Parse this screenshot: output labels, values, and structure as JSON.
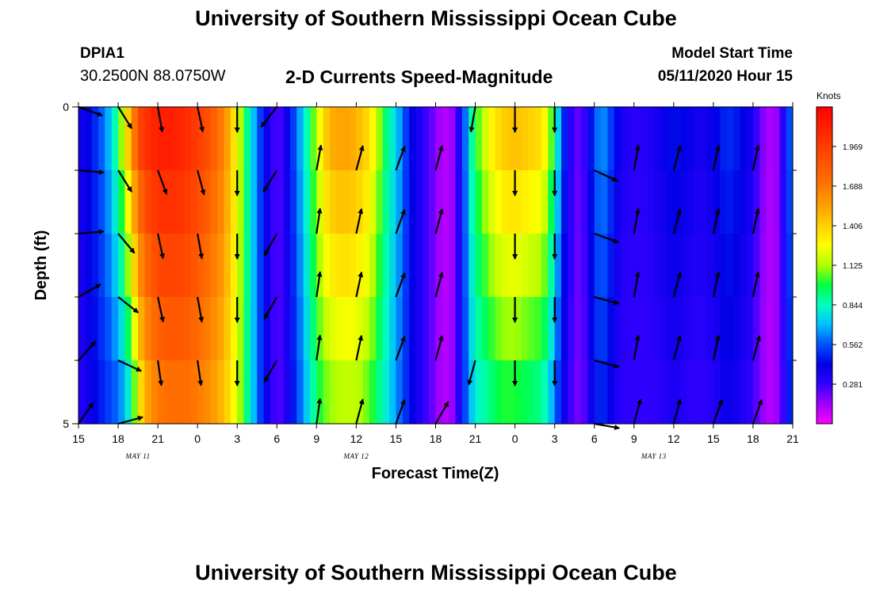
{
  "header": {
    "title": "University of Southern Mississippi Ocean Cube",
    "station_id": "DPIA1",
    "station_coords": "30.2500N 88.0750W",
    "plot_title": "2-D Currents Speed-Magnitude",
    "model_start_label": "Model Start Time",
    "model_start_value": "05/11/2020 Hour 15"
  },
  "footer": {
    "title": "University of Southern Mississippi Ocean Cube"
  },
  "chart_data": {
    "type": "heatmap",
    "title": "2-D Currents Speed-Magnitude",
    "xlabel": "Forecast Time(Z)",
    "ylabel": "Depth (ft)",
    "x_range_hours": [
      0,
      54
    ],
    "x_ticks": [
      {
        "hour": 0,
        "label": "15"
      },
      {
        "hour": 3,
        "label": "18"
      },
      {
        "hour": 6,
        "label": "21"
      },
      {
        "hour": 9,
        "label": "0"
      },
      {
        "hour": 12,
        "label": "3"
      },
      {
        "hour": 15,
        "label": "6"
      },
      {
        "hour": 18,
        "label": "9"
      },
      {
        "hour": 21,
        "label": "12"
      },
      {
        "hour": 24,
        "label": "15"
      },
      {
        "hour": 27,
        "label": "18"
      },
      {
        "hour": 30,
        "label": "21"
      },
      {
        "hour": 33,
        "label": "0"
      },
      {
        "hour": 36,
        "label": "3"
      },
      {
        "hour": 39,
        "label": "6"
      },
      {
        "hour": 42,
        "label": "9"
      },
      {
        "hour": 45,
        "label": "12"
      },
      {
        "hour": 48,
        "label": "15"
      },
      {
        "hour": 51,
        "label": "18"
      },
      {
        "hour": 54,
        "label": "21"
      }
    ],
    "date_labels": [
      {
        "hour": 4.5,
        "label": "MAY 11"
      },
      {
        "hour": 21,
        "label": "MAY 12"
      },
      {
        "hour": 43.5,
        "label": "MAY 13"
      }
    ],
    "y_range": [
      0,
      5
    ],
    "y_ticks": [
      {
        "value": 0,
        "label": "0"
      },
      {
        "value": 5,
        "label": "5"
      }
    ],
    "depth_levels": 5,
    "colorbar": {
      "unit_label": "Knots",
      "min": 0,
      "max": 2.25,
      "tick_values": [
        0.281,
        0.562,
        0.844,
        1.125,
        1.406,
        1.688,
        1.969
      ],
      "tick_labels": [
        "0.281",
        "0.562",
        "0.844",
        "1.125",
        "1.406",
        "1.688",
        "1.969"
      ]
    },
    "speed_profile": {
      "hours": [
        0,
        1,
        2,
        2.5,
        3,
        3.5,
        4,
        4.3,
        4.6,
        5,
        6,
        7,
        8,
        9,
        10,
        11,
        12,
        12.5,
        13,
        13.5,
        14,
        14.5,
        15,
        15.5,
        16,
        17,
        17.5,
        18,
        18.5,
        19,
        20,
        21,
        22,
        22.5,
        23,
        23.5,
        24,
        24.5,
        25,
        26,
        27,
        27.5,
        28,
        28.5,
        29,
        29.5,
        30,
        30.5,
        31,
        32,
        33,
        34,
        35,
        35.5,
        36,
        36.5,
        37,
        37.5,
        38,
        38.5,
        39,
        39.5,
        40,
        40.5,
        41,
        42,
        43,
        44,
        45,
        46,
        47,
        48,
        49,
        50,
        50.5,
        51,
        51.5,
        52,
        52.5,
        53,
        53.5,
        54
      ],
      "surface": [
        0.35,
        0.45,
        0.62,
        0.75,
        0.95,
        1.25,
        1.55,
        1.75,
        1.9,
        2.0,
        2.1,
        2.1,
        2.05,
        1.95,
        1.85,
        1.65,
        1.25,
        1.0,
        0.8,
        0.6,
        0.45,
        0.32,
        0.22,
        0.3,
        0.45,
        0.75,
        0.95,
        1.15,
        1.35,
        1.5,
        1.55,
        1.5,
        1.35,
        1.2,
        1.0,
        0.85,
        0.75,
        0.6,
        0.45,
        0.3,
        0.18,
        0.1,
        0.12,
        0.18,
        0.45,
        0.75,
        1.0,
        1.1,
        1.25,
        1.4,
        1.45,
        1.4,
        1.35,
        1.2,
        0.9,
        0.6,
        0.35,
        0.25,
        0.2,
        0.35,
        0.55,
        0.65,
        0.6,
        0.45,
        0.35,
        0.3,
        0.32,
        0.38,
        0.45,
        0.4,
        0.35,
        0.4,
        0.5,
        0.45,
        0.4,
        0.35,
        0.2,
        0.15,
        0.1,
        0.2,
        0.4,
        0.7
      ],
      "bottom": [
        0.3,
        0.4,
        0.5,
        0.55,
        0.6,
        0.7,
        0.9,
        1.1,
        1.3,
        1.5,
        1.7,
        1.75,
        1.75,
        1.7,
        1.6,
        1.45,
        1.2,
        1.0,
        0.8,
        0.6,
        0.45,
        0.32,
        0.22,
        0.28,
        0.4,
        0.65,
        0.8,
        0.95,
        1.05,
        1.1,
        1.15,
        1.15,
        1.05,
        0.95,
        0.85,
        0.75,
        0.65,
        0.55,
        0.45,
        0.3,
        0.18,
        0.1,
        0.12,
        0.18,
        0.45,
        0.65,
        0.8,
        0.85,
        0.9,
        1.0,
        1.0,
        0.95,
        0.9,
        0.8,
        0.6,
        0.45,
        0.3,
        0.22,
        0.18,
        0.3,
        0.45,
        0.5,
        0.45,
        0.35,
        0.3,
        0.28,
        0.28,
        0.3,
        0.35,
        0.3,
        0.28,
        0.32,
        0.4,
        0.35,
        0.3,
        0.28,
        0.18,
        0.12,
        0.1,
        0.18,
        0.35,
        0.6
      ]
    },
    "vectors": {
      "hours": [
        0,
        3,
        6,
        9,
        12,
        15,
        18,
        21,
        24,
        27,
        30,
        33,
        36,
        39,
        42,
        45,
        48,
        51,
        54
      ],
      "direction_deg_by_level": [
        [
          110,
          148,
          170,
          168,
          180,
          218,
          null,
          null,
          null,
          null,
          190,
          180,
          180,
          null,
          null,
          null,
          null,
          null,
          null
        ],
        [
          95,
          148,
          160,
          165,
          180,
          212,
          10,
          15,
          20,
          15,
          null,
          180,
          180,
          115,
          10,
          15,
          12,
          12,
          null
        ],
        [
          85,
          140,
          168,
          170,
          180,
          210,
          8,
          12,
          20,
          15,
          null,
          180,
          180,
          110,
          10,
          15,
          12,
          12,
          null
        ],
        [
          60,
          128,
          168,
          170,
          180,
          210,
          8,
          12,
          20,
          15,
          null,
          180,
          180,
          105,
          10,
          15,
          12,
          12,
          null
        ],
        [
          42,
          115,
          172,
          172,
          180,
          210,
          8,
          12,
          20,
          15,
          195,
          180,
          180,
          105,
          10,
          15,
          12,
          15,
          null
        ],
        [
          35,
          75,
          null,
          null,
          null,
          null,
          8,
          15,
          20,
          30,
          null,
          null,
          null,
          100,
          15,
          15,
          20,
          20,
          null
        ]
      ]
    }
  }
}
